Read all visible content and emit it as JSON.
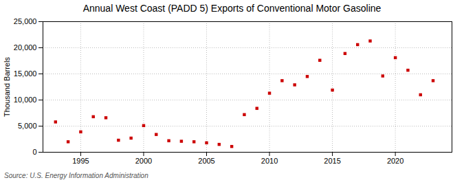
{
  "chart_data": {
    "type": "scatter",
    "title": "Annual West Coast (PADD 5) Exports of Conventional Motor Gasoline",
    "ylabel": "Thousand Barrels",
    "annotations": [
      "Source: U.S. Energy Information Administration"
    ],
    "x": [
      1993,
      1994,
      1995,
      1996,
      1997,
      1998,
      1999,
      2000,
      2001,
      2002,
      2003,
      2004,
      2005,
      2006,
      2007,
      2008,
      2009,
      2010,
      2011,
      2012,
      2013,
      2014,
      2015,
      2016,
      2017,
      2018,
      2019,
      2020,
      2021,
      2022,
      2023
    ],
    "values": [
      5800,
      2000,
      3900,
      6800,
      6600,
      2300,
      2700,
      5100,
      3400,
      2200,
      2100,
      2000,
      1800,
      1500,
      1100,
      7200,
      8400,
      11300,
      13700,
      12900,
      14500,
      17600,
      11900,
      18900,
      20600,
      21300,
      14600,
      18100,
      15700,
      11000,
      13700
    ],
    "color": "#cc0000",
    "marker": "square",
    "xlim": [
      1992,
      2024.5
    ],
    "ylim": [
      0,
      25000
    ],
    "xticks": [
      1995,
      2000,
      2005,
      2010,
      2015,
      2020
    ],
    "yticks": [
      0,
      {
        "value": 5000,
        "label": "5,000"
      },
      {
        "value": 10000,
        "label": "10,000"
      },
      {
        "value": 15000,
        "label": "15,000"
      },
      {
        "value": 20000,
        "label": "20,000"
      },
      {
        "value": 25000,
        "label": "25,000"
      }
    ],
    "grid": true
  }
}
